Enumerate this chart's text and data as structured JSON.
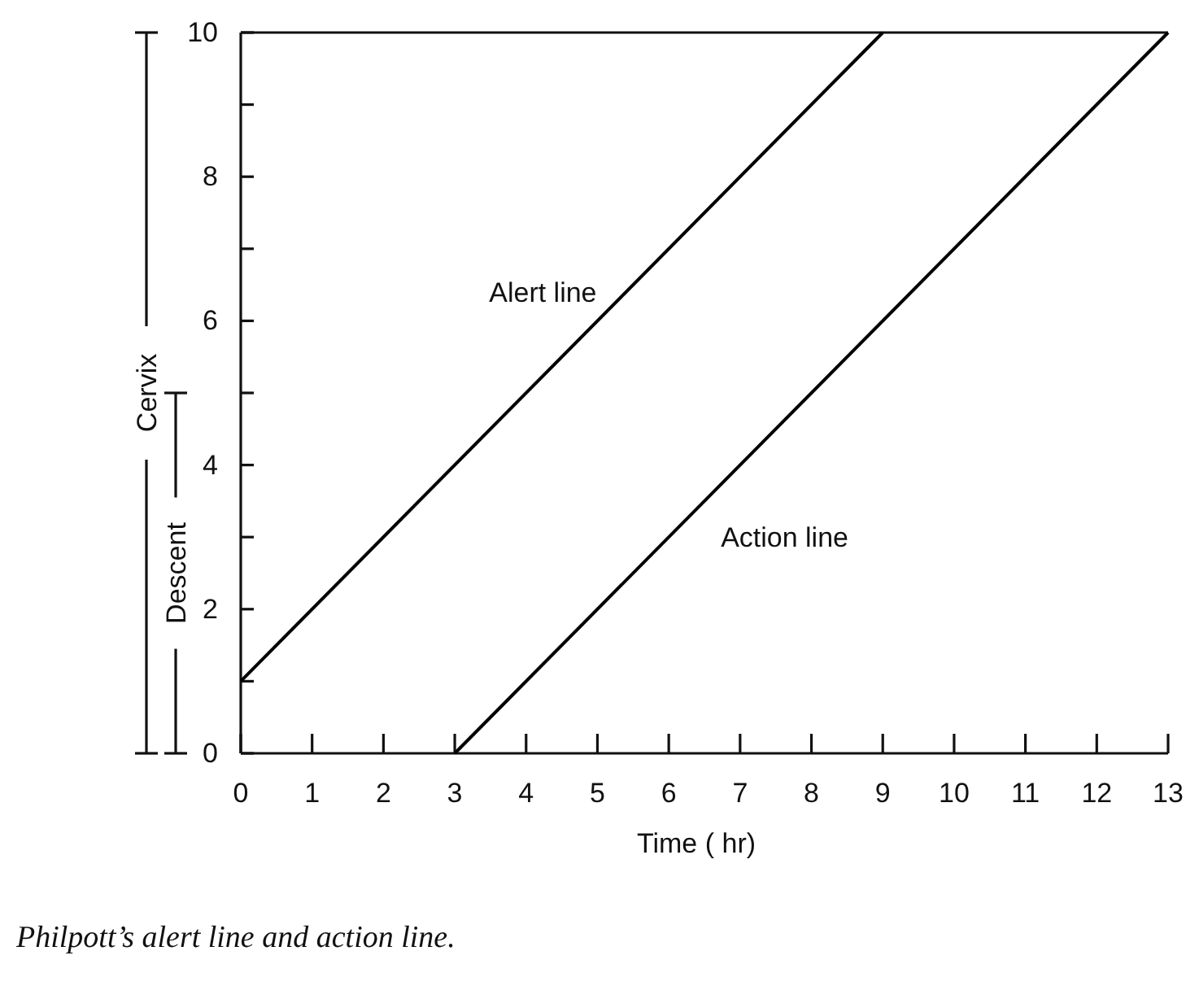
{
  "chart_data": {
    "type": "line",
    "xlabel": "Time ( hr)",
    "ylabel": "Cervix",
    "annotations": [
      "Descent",
      "Philpott’s alert line and action line."
    ],
    "series": [
      {
        "name": "Alert line",
        "color": "#000000",
        "x": [
          0,
          9
        ],
        "values": [
          1,
          10
        ]
      },
      {
        "name": "Action line",
        "color": "#000000",
        "x": [
          3,
          13
        ],
        "values": [
          0,
          10
        ]
      }
    ],
    "xlim": [
      0,
      13
    ],
    "xticks": [
      0,
      1,
      2,
      3,
      4,
      5,
      6,
      7,
      8,
      9,
      10,
      11,
      12,
      13
    ],
    "ylim": [
      0,
      10
    ],
    "yticks": [
      0,
      {
        "value": 1,
        "label": null
      },
      2,
      {
        "value": 3,
        "label": null
      },
      4,
      {
        "value": 5,
        "label": null
      },
      6,
      {
        "value": 7,
        "label": null
      },
      8,
      {
        "value": 9,
        "label": null
      },
      10
    ],
    "grid": false,
    "legend": false,
    "marker": "none",
    "line_style": "solid"
  }
}
